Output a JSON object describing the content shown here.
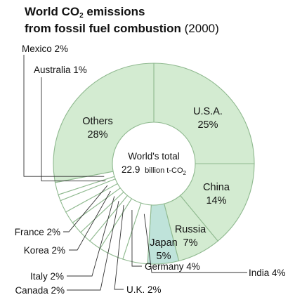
{
  "chart_data": {
    "type": "pie",
    "title_main": "World CO",
    "title_sub": "2",
    "title_rest": " emissions",
    "title_line2": "from fossil fuel combustion",
    "title_year": "(2000)",
    "center_label_line1": "World's total",
    "center_value": "22.9",
    "center_unit": "billion t-CO",
    "center_unit_sub": "2",
    "slices": [
      {
        "name": "U.S.A.",
        "value": 25,
        "label": "25%",
        "color": "#d3ebd1",
        "label_style": "inside"
      },
      {
        "name": "China",
        "value": 14,
        "label": "14%",
        "color": "#d3ebd1",
        "label_style": "inside"
      },
      {
        "name": "Russia",
        "value": 7,
        "label": "7%",
        "color": "#d3ebd1",
        "label_style": "inside"
      },
      {
        "name": "Japan",
        "value": 5,
        "label": "5%",
        "color": "#bfe3da",
        "label_style": "inside"
      },
      {
        "name": "India",
        "value": 4,
        "label": "India 4%",
        "color": "#ffffff",
        "label_style": "callout"
      },
      {
        "name": "Germany",
        "value": 4,
        "label": "Germany 4%",
        "color": "#ffffff",
        "label_style": "callout"
      },
      {
        "name": "U.K.",
        "value": 2,
        "label": "U.K. 2%",
        "color": "#ffffff",
        "label_style": "callout"
      },
      {
        "name": "Canada",
        "value": 2,
        "label": "Canada 2%",
        "color": "#ffffff",
        "label_style": "callout"
      },
      {
        "name": "Italy",
        "value": 2,
        "label": "Italy 2%",
        "color": "#ffffff",
        "label_style": "callout"
      },
      {
        "name": "Korea",
        "value": 2,
        "label": "Korea 2%",
        "color": "#ffffff",
        "label_style": "callout"
      },
      {
        "name": "France",
        "value": 2,
        "label": "France 2%",
        "color": "#ffffff",
        "label_style": "callout"
      },
      {
        "name": "Australia",
        "value": 1,
        "label": "Australia 1%",
        "color": "#ffffff",
        "label_style": "callout"
      },
      {
        "name": "Mexico",
        "value": 2,
        "label": "Mexico 2%",
        "color": "#ffffff",
        "label_style": "callout"
      },
      {
        "name": "Others",
        "value": 28,
        "label": "28%",
        "color": "#d3ebd1",
        "label_style": "inside"
      }
    ],
    "stroke_color": "#8fb98f",
    "line_color": "#333333"
  }
}
